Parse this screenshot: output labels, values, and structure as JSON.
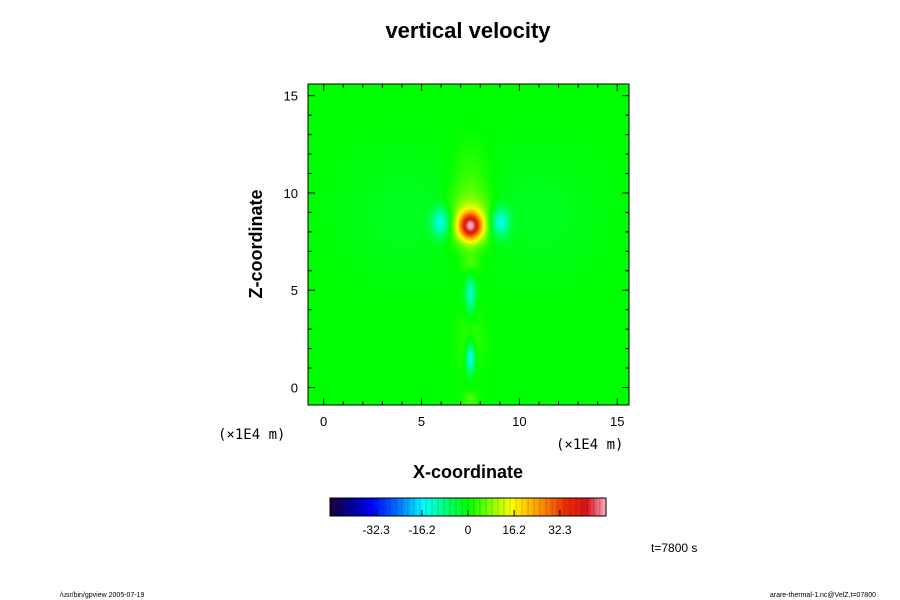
{
  "chart_data": {
    "type": "heatmap",
    "title": "vertical velocity",
    "xlabel": "X-coordinate",
    "ylabel": "Z-coordinate",
    "x_unit": "(×1E4 m)",
    "y_unit": "(×1E4 m)",
    "xlim": [
      -0.8,
      15.6
    ],
    "ylim": [
      -0.9,
      15.6
    ],
    "x_ticks": [
      0,
      5,
      10,
      15
    ],
    "y_ticks": [
      0,
      5,
      10,
      15
    ],
    "x_tick_labels": [
      "0",
      "5",
      "10",
      "15"
    ],
    "y_tick_labels": [
      "0",
      "5",
      "10",
      "15"
    ],
    "colorbar": {
      "range": [
        -48.5,
        48.5
      ],
      "ticks": [
        -32.3,
        -16.2,
        0,
        16.2,
        32.3
      ],
      "tick_labels": [
        "-32.3",
        "-16.2",
        "0",
        "16.2",
        "32.3"
      ]
    },
    "features": [
      {
        "x": 7.5,
        "z": 8.3,
        "sx": 0.42,
        "sz": 0.5,
        "value": 40
      },
      {
        "x": 7.5,
        "z": 8.6,
        "sx": 0.9,
        "sz": 1.0,
        "value": 10
      },
      {
        "x": 7.5,
        "z": 10.6,
        "sx": 0.7,
        "sz": 1.4,
        "value": 4
      },
      {
        "x": 6.0,
        "z": 8.5,
        "sx": 0.35,
        "sz": 0.55,
        "value": -15
      },
      {
        "x": 9.0,
        "z": 8.5,
        "sx": 0.35,
        "sz": 0.55,
        "value": -15
      },
      {
        "x": 7.5,
        "z": 4.8,
        "sx": 0.18,
        "sz": 0.7,
        "value": -13
      },
      {
        "x": 7.5,
        "z": 6.3,
        "sx": 0.3,
        "sz": 0.5,
        "value": 5
      },
      {
        "x": 7.5,
        "z": 1.5,
        "sx": 0.15,
        "sz": 0.55,
        "value": -18
      },
      {
        "x": 7.5,
        "z": 2.5,
        "sx": 0.5,
        "sz": 1.2,
        "value": 3
      },
      {
        "x": 7.5,
        "z": -0.6,
        "sx": 0.25,
        "sz": 0.25,
        "value": 5
      },
      {
        "x": 4.0,
        "z": 9.0,
        "sx": 2.5,
        "sz": 2.5,
        "value": -2
      },
      {
        "x": 11.0,
        "z": 9.0,
        "sx": 2.5,
        "sz": 2.5,
        "value": -2
      }
    ],
    "annotations": {
      "time": "t=7800 s",
      "footer_left": "/usr/bin/gpview 2005-07-19",
      "footer_right": "arare-thermal-1.nc@VelZ,t=07800"
    }
  }
}
